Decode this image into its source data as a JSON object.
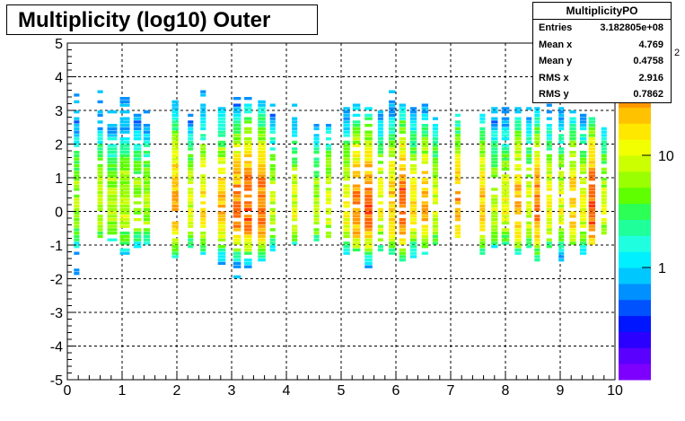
{
  "chart_data": {
    "type": "heatmap",
    "title": "Multiplicity (log10) Outer",
    "xlim": [
      0,
      10
    ],
    "ylim": [
      -5,
      5
    ],
    "x_ticks": [
      "0",
      "1",
      "2",
      "3",
      "4",
      "5",
      "6",
      "7",
      "8",
      "9",
      "10"
    ],
    "y_ticks": [
      "-5",
      "-4",
      "-3",
      "-2",
      "-1",
      "0",
      "1",
      "2",
      "3",
      "4",
      "5"
    ],
    "z_scale": "log",
    "z_range": [
      0.1,
      100
    ],
    "z_ticks": [
      {
        "label": "1",
        "value": 1
      },
      {
        "label": "10",
        "value": 10
      }
    ],
    "z_exponent_label": "2",
    "grid": true,
    "x_bins": [
      {
        "x": 0.17,
        "w": 0.1,
        "ymin": -1.9,
        "ymax": 3.7,
        "peak": 8
      },
      {
        "x": 0.6,
        "w": 0.1,
        "ymin": -1.1,
        "ymax": 3.8,
        "peak": 10
      },
      {
        "x": 0.82,
        "w": 0.18,
        "ymin": -1.0,
        "ymax": 3.4,
        "peak": 8
      },
      {
        "x": 1.05,
        "w": 0.18,
        "ymin": -1.3,
        "ymax": 3.5,
        "peak": 10
      },
      {
        "x": 1.28,
        "w": 0.14,
        "ymin": -1.2,
        "ymax": 3.1,
        "peak": 8
      },
      {
        "x": 1.45,
        "w": 0.12,
        "ymin": -1.0,
        "ymax": 3.0,
        "peak": 8
      },
      {
        "x": 1.97,
        "w": 0.12,
        "ymin": -1.4,
        "ymax": 3.5,
        "peak": 35
      },
      {
        "x": 2.25,
        "w": 0.1,
        "ymin": -1.1,
        "ymax": 3.0,
        "peak": 12
      },
      {
        "x": 2.48,
        "w": 0.1,
        "ymin": -1.3,
        "ymax": 3.7,
        "peak": 20
      },
      {
        "x": 2.82,
        "w": 0.14,
        "ymin": -1.6,
        "ymax": 3.1,
        "peak": 25
      },
      {
        "x": 3.1,
        "w": 0.14,
        "ymin": -2.0,
        "ymax": 3.5,
        "peak": 45
      },
      {
        "x": 3.3,
        "w": 0.14,
        "ymin": -1.8,
        "ymax": 3.4,
        "peak": 60
      },
      {
        "x": 3.55,
        "w": 0.14,
        "ymin": -1.5,
        "ymax": 3.4,
        "peak": 50
      },
      {
        "x": 3.75,
        "w": 0.1,
        "ymin": -1.2,
        "ymax": 3.3,
        "peak": 10
      },
      {
        "x": 4.15,
        "w": 0.1,
        "ymin": -1.0,
        "ymax": 3.2,
        "peak": 12
      },
      {
        "x": 4.55,
        "w": 0.1,
        "ymin": -0.9,
        "ymax": 2.6,
        "peak": 8
      },
      {
        "x": 4.77,
        "w": 0.1,
        "ymin": -0.8,
        "ymax": 2.7,
        "peak": 12
      },
      {
        "x": 5.1,
        "w": 0.12,
        "ymin": -1.3,
        "ymax": 3.2,
        "peak": 15
      },
      {
        "x": 5.28,
        "w": 0.14,
        "ymin": -1.2,
        "ymax": 3.2,
        "peak": 45
      },
      {
        "x": 5.5,
        "w": 0.14,
        "ymin": -1.7,
        "ymax": 3.1,
        "peak": 50
      },
      {
        "x": 5.72,
        "w": 0.1,
        "ymin": -1.2,
        "ymax": 3.2,
        "peak": 15
      },
      {
        "x": 5.93,
        "w": 0.12,
        "ymin": -1.3,
        "ymax": 3.7,
        "peak": 25
      },
      {
        "x": 6.12,
        "w": 0.12,
        "ymin": -1.5,
        "ymax": 3.2,
        "peak": 55
      },
      {
        "x": 6.32,
        "w": 0.12,
        "ymin": -1.4,
        "ymax": 3.1,
        "peak": 18
      },
      {
        "x": 6.53,
        "w": 0.12,
        "ymin": -1.3,
        "ymax": 3.2,
        "peak": 30
      },
      {
        "x": 6.72,
        "w": 0.1,
        "ymin": -1.0,
        "ymax": 2.8,
        "peak": 12
      },
      {
        "x": 7.13,
        "w": 0.1,
        "ymin": -0.8,
        "ymax": 2.9,
        "peak": 35
      },
      {
        "x": 7.58,
        "w": 0.1,
        "ymin": -1.3,
        "ymax": 2.9,
        "peak": 25
      },
      {
        "x": 7.8,
        "w": 0.12,
        "ymin": -1.2,
        "ymax": 3.1,
        "peak": 10
      },
      {
        "x": 8.0,
        "w": 0.14,
        "ymin": -1.0,
        "ymax": 3.2,
        "peak": 12
      },
      {
        "x": 8.23,
        "w": 0.12,
        "ymin": -1.3,
        "ymax": 3.1,
        "peak": 30
      },
      {
        "x": 8.43,
        "w": 0.1,
        "ymin": -1.1,
        "ymax": 3.2,
        "peak": 12
      },
      {
        "x": 8.58,
        "w": 0.1,
        "ymin": -1.5,
        "ymax": 3.1,
        "peak": 45
      },
      {
        "x": 8.8,
        "w": 0.1,
        "ymin": -1.1,
        "ymax": 3.2,
        "peak": 15
      },
      {
        "x": 9.02,
        "w": 0.1,
        "ymin": -1.7,
        "ymax": 3.2,
        "peak": 12
      },
      {
        "x": 9.23,
        "w": 0.12,
        "ymin": -1.0,
        "ymax": 3.1,
        "peak": 25
      },
      {
        "x": 9.42,
        "w": 0.12,
        "ymin": -1.3,
        "ymax": 3.0,
        "peak": 12
      },
      {
        "x": 9.58,
        "w": 0.12,
        "ymin": -1.0,
        "ymax": 2.8,
        "peak": 60
      },
      {
        "x": 9.8,
        "w": 0.1,
        "ymin": -0.7,
        "ymax": 2.6,
        "peak": 10
      }
    ]
  },
  "stats": {
    "title": "MultiplicityPO",
    "rows": [
      {
        "label": "Entries",
        "value": "3.182805e+08"
      },
      {
        "label": "Mean x",
        "value": "4.769"
      },
      {
        "label": "Mean y",
        "value": "0.4758"
      },
      {
        "label": "RMS x",
        "value": "2.916"
      },
      {
        "label": "RMS y",
        "value": "0.7862"
      }
    ]
  },
  "palette": [
    "#7d00ff",
    "#5a00ff",
    "#2c00ff",
    "#0016ff",
    "#0052ff",
    "#0090ff",
    "#00c8ff",
    "#00f0ff",
    "#1fffe0",
    "#1fff9a",
    "#2cff55",
    "#5fff00",
    "#9aff00",
    "#ccff00",
    "#f2ff00",
    "#ffe800",
    "#ffc200",
    "#ff9900",
    "#ff6600",
    "#ff3300",
    "#ff0000"
  ]
}
